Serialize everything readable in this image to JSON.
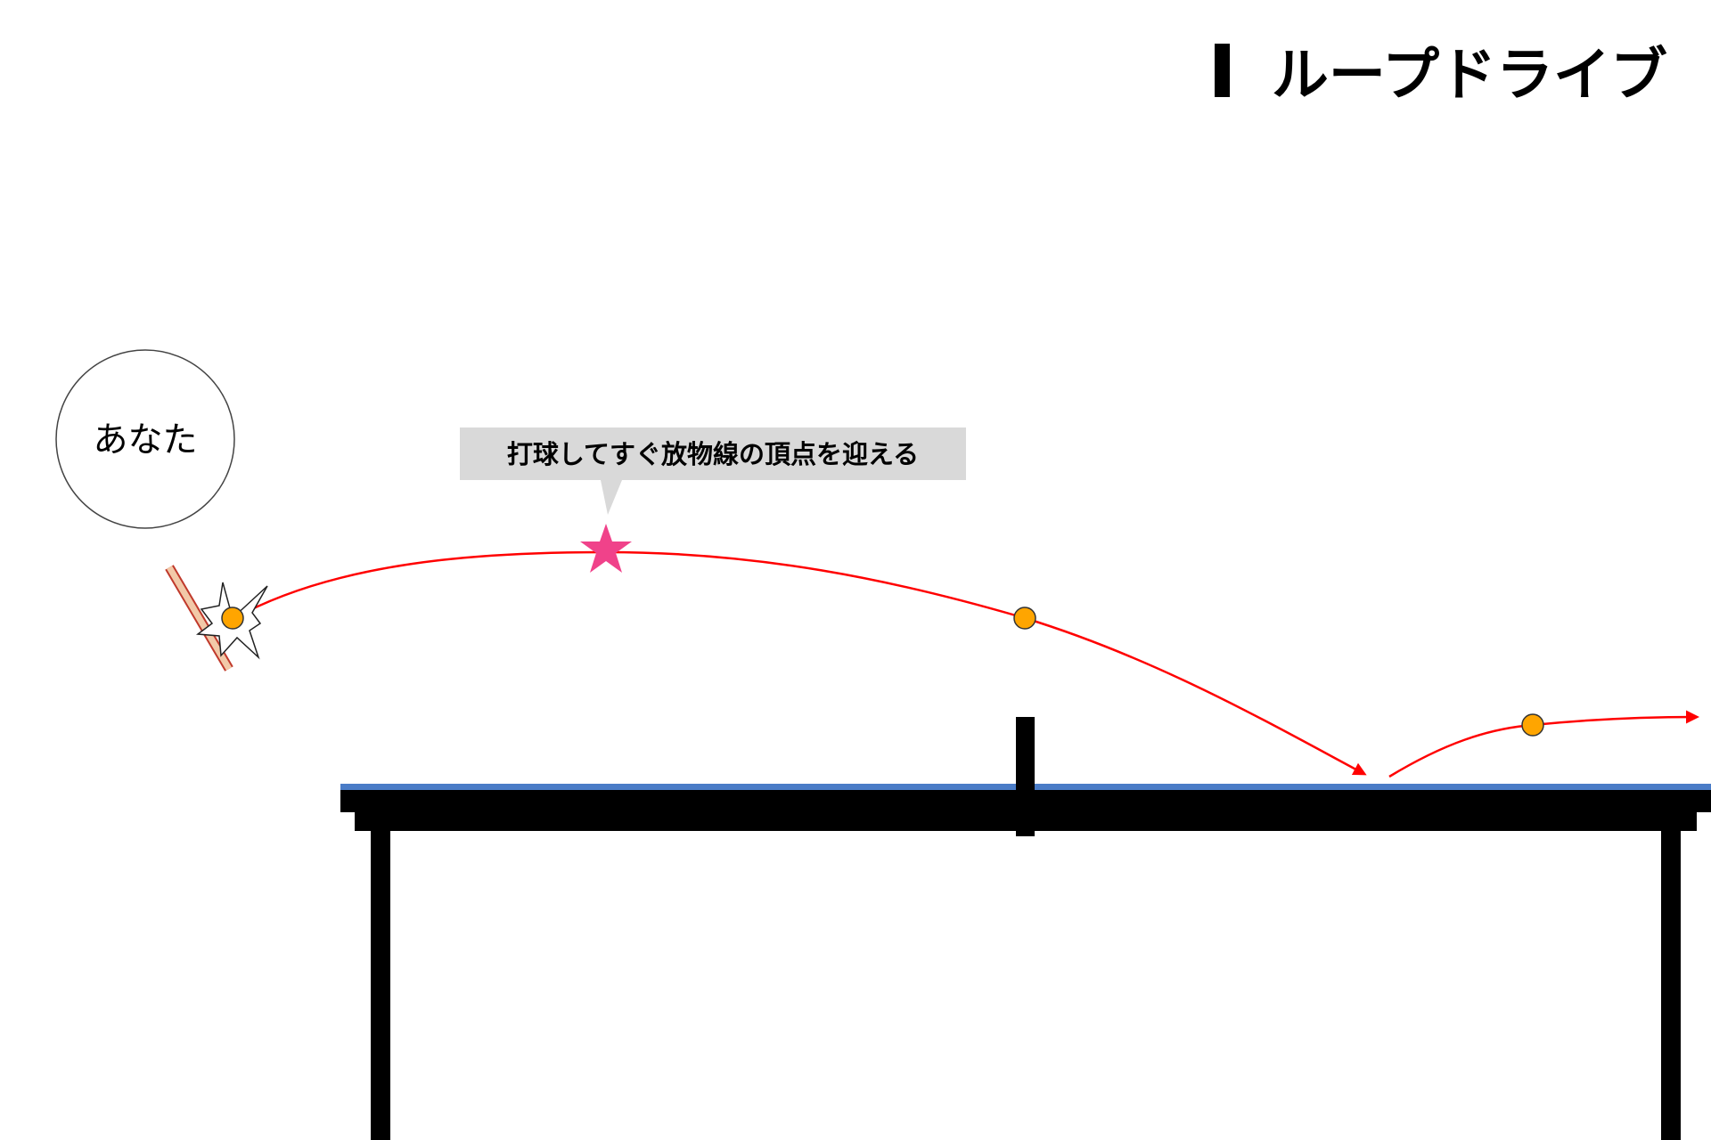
{
  "title": "ループドライブ",
  "player_label": "あなた",
  "callout": "打球してすぐ放物線の頂点を迎える"
}
